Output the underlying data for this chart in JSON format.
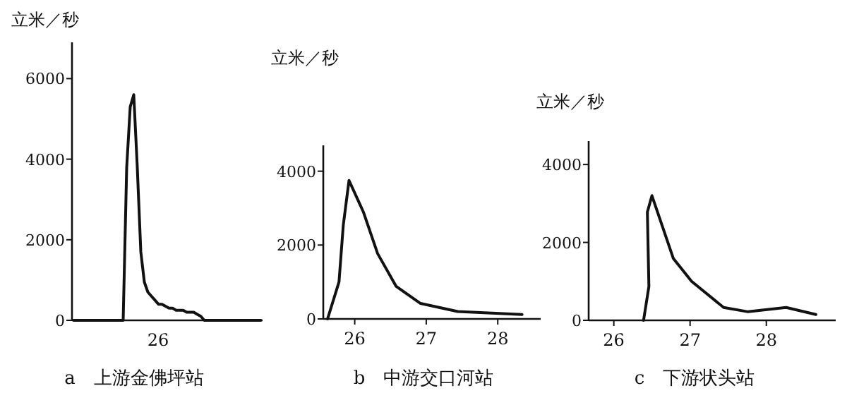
{
  "chart_data": [
    {
      "type": "line",
      "title": "a　上游金佛坪站",
      "ylabel": "立米／秒",
      "color": "#111111",
      "ylim": [
        0,
        6900
      ],
      "yticks": [
        0,
        2000,
        4000,
        6000
      ],
      "annotations": [
        "26"
      ],
      "categories": [
        null,
        null,
        null,
        null,
        null,
        null,
        null,
        null,
        null,
        null,
        null,
        null,
        null,
        null,
        null,
        null,
        null,
        null,
        null,
        null,
        null,
        null,
        null,
        null,
        null,
        null,
        null,
        null,
        null,
        null,
        null,
        null,
        null,
        null,
        null,
        null,
        null,
        null,
        null,
        null,
        null,
        null,
        null,
        null,
        null,
        null,
        null,
        null,
        null,
        null,
        null,
        null,
        null,
        null
      ],
      "values": [
        0,
        0,
        0,
        0,
        0,
        0,
        0,
        0,
        0,
        0,
        0,
        0,
        0,
        0,
        0,
        3800,
        5300,
        5600,
        3800,
        1700,
        950,
        700,
        600,
        500,
        400,
        400,
        350,
        300,
        300,
        250,
        250,
        250,
        200,
        200,
        200,
        150,
        100,
        0,
        0,
        0,
        0,
        0,
        0,
        0,
        0,
        0,
        0,
        0,
        0,
        0,
        0,
        0,
        0,
        0
      ]
    },
    {
      "type": "line",
      "title": "b　中游交口河站",
      "ylabel": "立米／秒",
      "color": "#111111",
      "xlim": [
        25.56,
        28.6
      ],
      "ylim": [
        0,
        4700
      ],
      "xticks": [
        26,
        27,
        28
      ],
      "yticks": [
        0,
        2000,
        4000
      ],
      "x": [
        25.62,
        25.78,
        25.84,
        25.92,
        26.12,
        26.32,
        26.58,
        26.92,
        27.44,
        28.34
      ],
      "values": [
        0,
        1000,
        2540,
        3750,
        2900,
        1770,
        880,
        420,
        200,
        120
      ]
    },
    {
      "type": "line",
      "title": "c　下游状头站",
      "ylabel": "立米／秒",
      "color": "#111111",
      "xlim": [
        25.67,
        28.91
      ],
      "ylim": [
        0,
        4600
      ],
      "xticks": [
        26,
        27,
        28
      ],
      "yticks": [
        0,
        2000,
        4000
      ],
      "x": [
        26.39,
        26.46,
        26.44,
        26.5,
        26.78,
        27.02,
        27.44,
        27.76,
        28.26,
        28.65
      ],
      "values": [
        0,
        870,
        2780,
        3200,
        1590,
        1000,
        330,
        220,
        330,
        150
      ]
    }
  ]
}
